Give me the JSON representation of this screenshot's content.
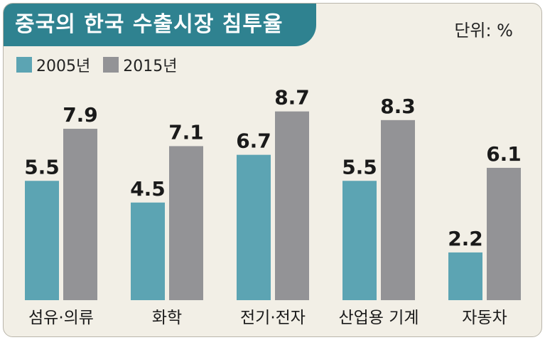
{
  "title": "중국의 한국 수출시장 침투율",
  "unit": "단위: %",
  "colors": {
    "series2005": "#5ca4b3",
    "series2015": "#939396",
    "title_bg": "#2f8290"
  },
  "chart_data": {
    "type": "bar",
    "title": "중국의 한국 수출시장 침투율",
    "categories": [
      "섬유·의류",
      "화학",
      "전기·전자",
      "산업용 기계",
      "자동차"
    ],
    "series": [
      {
        "name": "2005년",
        "values": [
          5.5,
          4.5,
          6.7,
          5.5,
          2.2
        ]
      },
      {
        "name": "2015년",
        "values": [
          7.9,
          7.1,
          8.7,
          8.3,
          6.1
        ]
      }
    ],
    "ylim": [
      0,
      9.8
    ],
    "grid": false,
    "legend": "top-left",
    "unit": "%"
  }
}
